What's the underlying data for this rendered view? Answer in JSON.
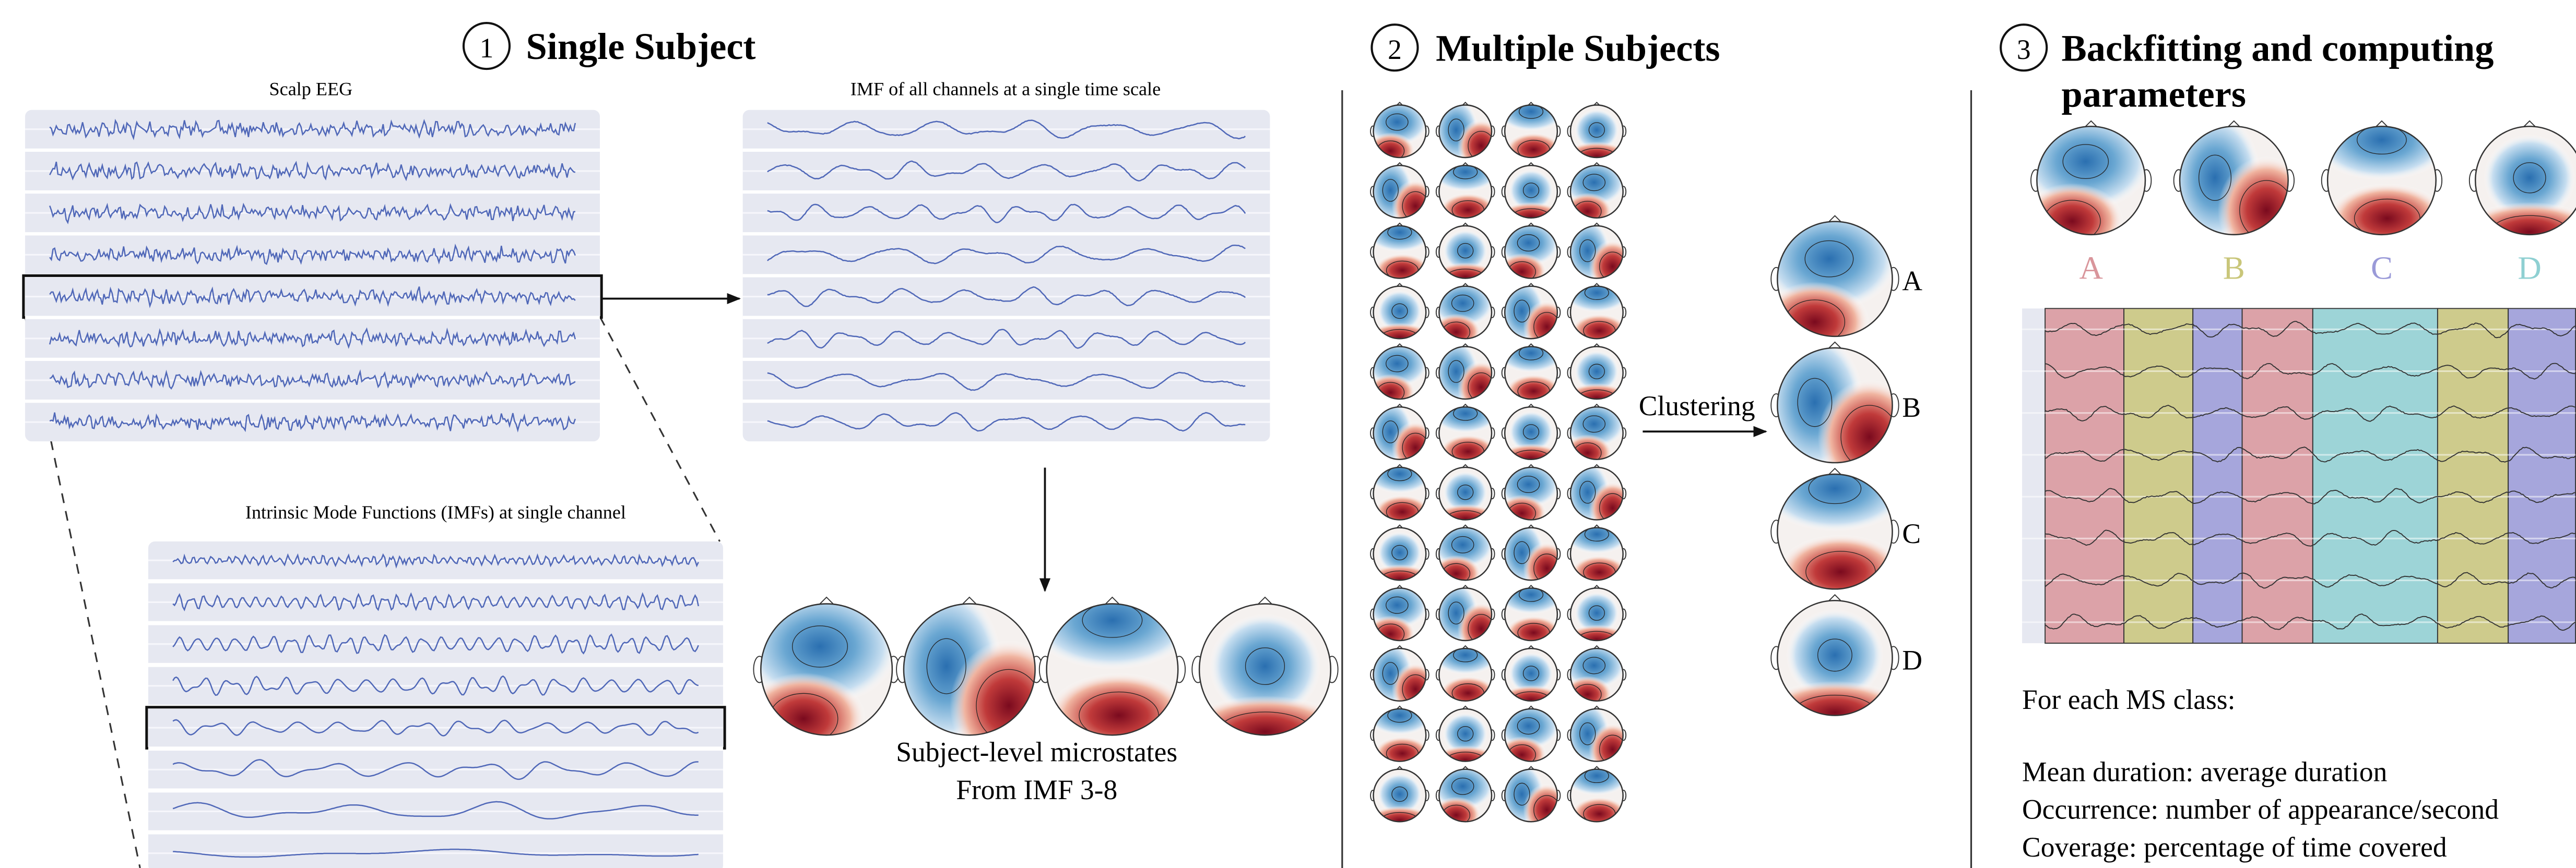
{
  "panels": [
    {
      "number": "1",
      "title": "Single Subject",
      "scalp_eeg_label": "Scalp EEG",
      "imf_all_label": "IMF of all channels at a single time scale",
      "imf_single_label": "Intrinsic Mode Functions (IMFs) at single channel",
      "caption": [
        "Subject-level microstates",
        "From IMF 3-8"
      ]
    },
    {
      "number": "2",
      "title": "Multiple Subjects",
      "arrow_label": "Clustering",
      "classes": [
        "A",
        "B",
        "C",
        "D"
      ]
    },
    {
      "number": "3",
      "title": [
        "Backfitting and computing",
        "parameters"
      ],
      "classes": [
        "A",
        "B",
        "C",
        "D"
      ],
      "intro": "For each MS class:",
      "parameters": [
        "Mean duration: average duration",
        "Occurrence: number of appearance/second",
        "Coverage: percentage of time covered"
      ]
    }
  ]
}
